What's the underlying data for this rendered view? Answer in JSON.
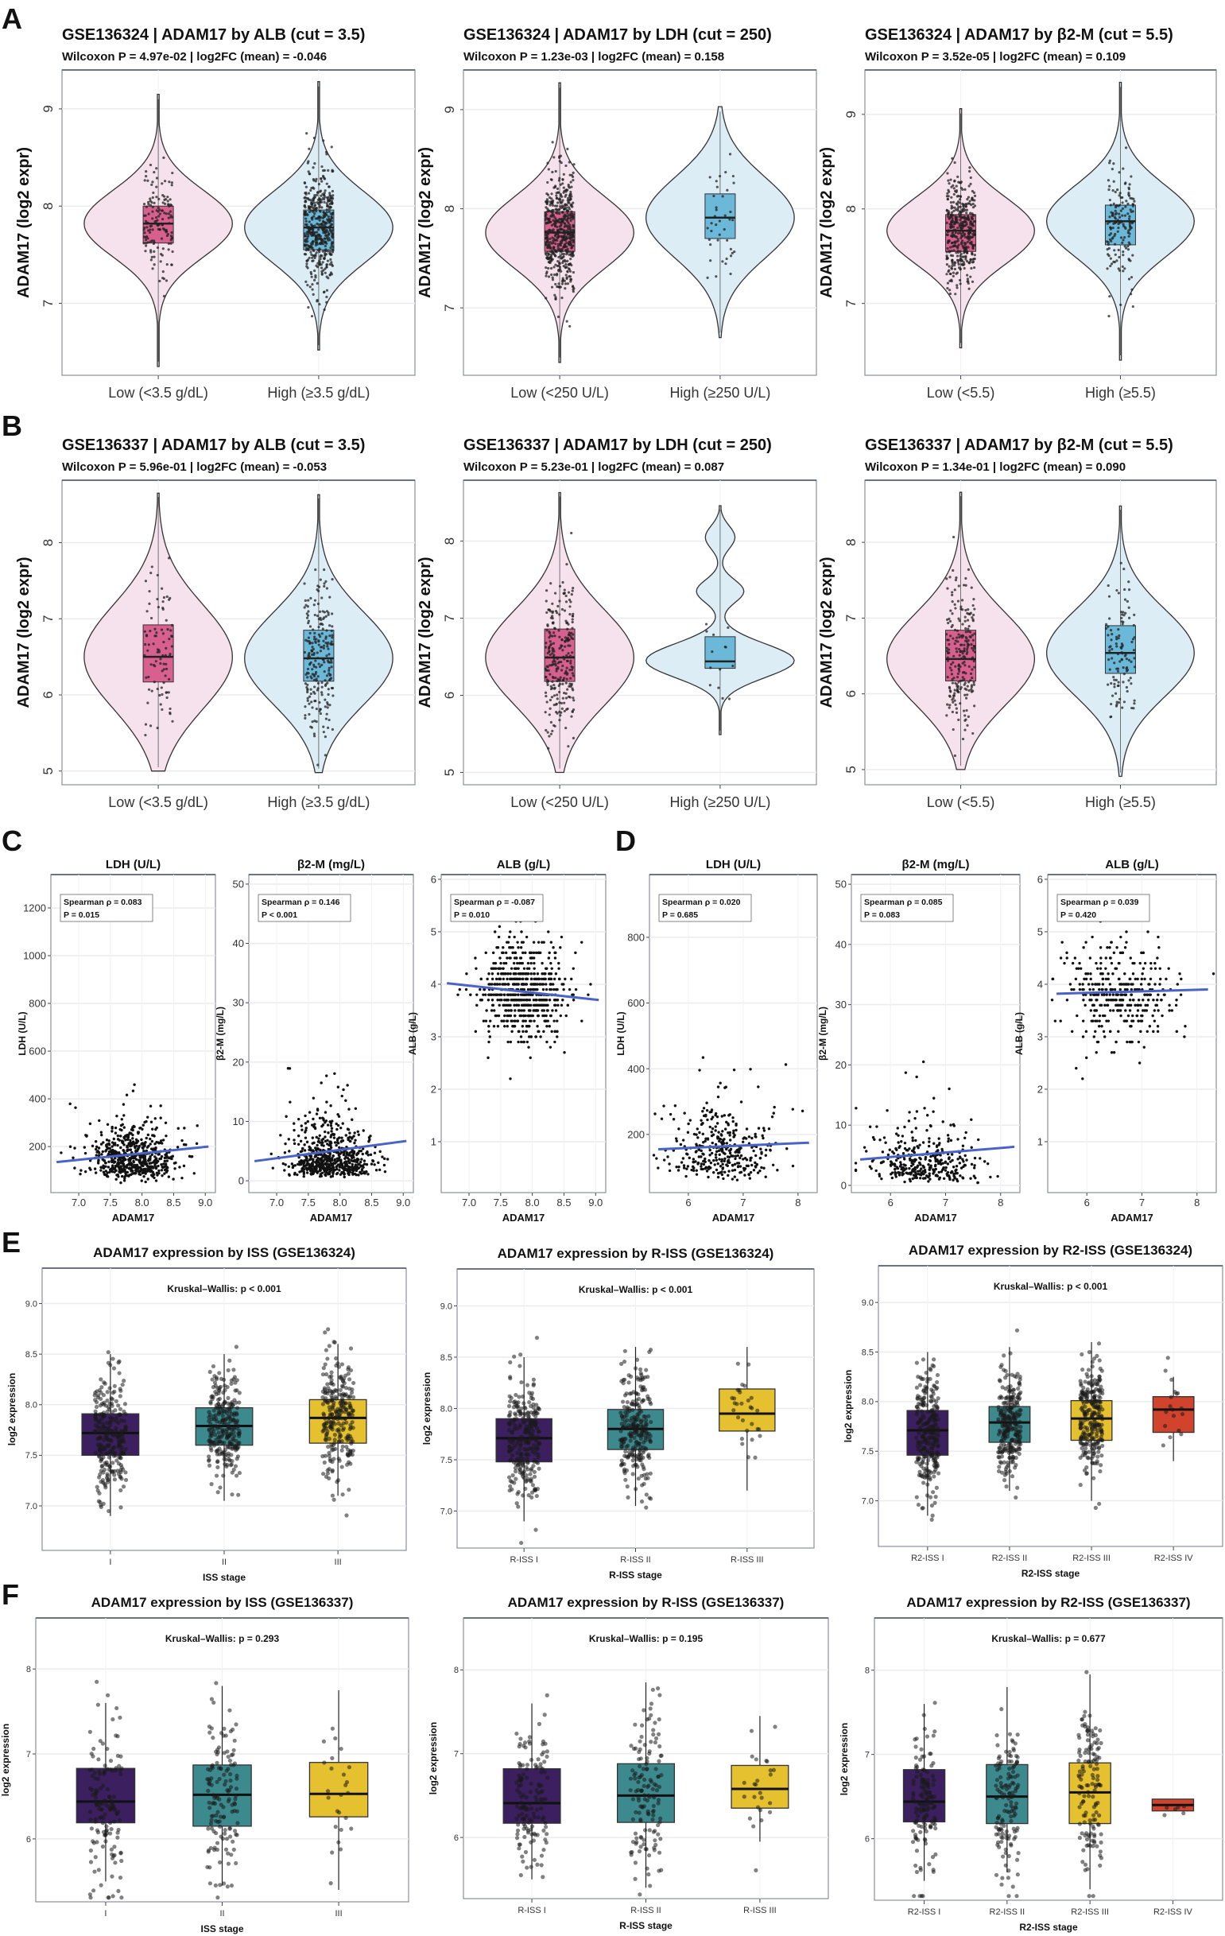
{
  "figure": {
    "panel_labels": [
      "A",
      "B",
      "C",
      "D",
      "E",
      "F"
    ]
  },
  "chart_data": [
    {
      "type": "violin",
      "title": "GSE136324 | ADAM17 by ALB (cut = 3.5)",
      "subtitle": "Wilcoxon P = 4.97e-02 | log2FC (mean) = -0.046",
      "ylabel": "ADAM17 (log2 expr)",
      "ylim": [
        6.26,
        9.4
      ],
      "yticks": [
        "7",
        "8",
        "9"
      ],
      "categories": [
        "Low (<3.5 g/dL)",
        "High (≥3.5 g/dL)"
      ],
      "groups": [
        {
          "median": 7.82,
          "q1": 7.62,
          "q3": 8.0,
          "min": 6.35,
          "max": 9.15,
          "violin": "#f6e2ec",
          "box": "#d8608f"
        },
        {
          "median": 7.78,
          "q1": 7.55,
          "q3": 7.96,
          "min": 6.52,
          "max": 9.28,
          "violin": "#ddedf6",
          "box": "#6cb8d8"
        }
      ]
    },
    {
      "type": "violin",
      "title": "GSE136324 | ADAM17 by LDH (cut = 250)",
      "subtitle": "Wilcoxon P = 1.23e-03 | log2FC (mean) = 0.158",
      "ylabel": "ADAM17 (log2 expr)",
      "ylim": [
        6.32,
        9.4
      ],
      "yticks": [
        "7",
        "8",
        "9"
      ],
      "categories": [
        "Low (<250 U/L)",
        "High (≥250 U/L)"
      ],
      "groups": [
        {
          "median": 7.76,
          "q1": 7.57,
          "q3": 7.97,
          "min": 6.45,
          "max": 9.27,
          "violin": "#f6e2ec",
          "box": "#d8608f"
        },
        {
          "median": 7.91,
          "q1": 7.7,
          "q3": 8.15,
          "min": 6.7,
          "max": 9.03,
          "violin": "#ddedf6",
          "box": "#6cb8d8"
        }
      ]
    },
    {
      "type": "violin",
      "title": "GSE136324 | ADAM17 by β2-M (cut = 5.5)",
      "subtitle": "Wilcoxon P = 3.52e-05 | log2FC (mean) = 0.109",
      "ylabel": "ADAM17 (log2 expr)",
      "ylim": [
        6.24,
        9.47
      ],
      "yticks": [
        "7",
        "8",
        "9"
      ],
      "categories": [
        "Low (<5.5)",
        "High (≥5.5)"
      ],
      "groups": [
        {
          "median": 7.77,
          "q1": 7.55,
          "q3": 7.94,
          "min": 6.53,
          "max": 9.06,
          "violin": "#f6e2ec",
          "box": "#d8608f"
        },
        {
          "median": 7.87,
          "q1": 7.62,
          "q3": 8.04,
          "min": 6.4,
          "max": 9.34,
          "violin": "#ddedf6",
          "box": "#6cb8d8"
        }
      ]
    },
    {
      "type": "violin",
      "title": "GSE136337 | ADAM17 by ALB (cut = 3.5)",
      "subtitle": "Wilcoxon P = 5.96e-01 | log2FC (mean) = -0.053",
      "ylabel": "ADAM17 (log2 expr)",
      "ylim": [
        4.82,
        8.82
      ],
      "yticks": [
        "5",
        "6",
        "7",
        "8"
      ],
      "categories": [
        "Low (<3.5 g/dL)",
        "High (≥3.5 g/dL)"
      ],
      "groups": [
        {
          "median": 6.5,
          "q1": 6.17,
          "q3": 6.92,
          "min": 5.0,
          "max": 8.65,
          "violin": "#f6e2ec",
          "box": "#d8608f"
        },
        {
          "median": 6.48,
          "q1": 6.18,
          "q3": 6.85,
          "min": 4.98,
          "max": 8.63,
          "violin": "#ddedf6",
          "box": "#6cb8d8"
        }
      ]
    },
    {
      "type": "violin",
      "title": "GSE136337 | ADAM17 by LDH (cut = 250)",
      "subtitle": "Wilcoxon P = 5.23e-01 | log2FC (mean) = 0.087",
      "ylabel": "ADAM17 (log2 expr)",
      "ylim": [
        4.84,
        8.79
      ],
      "yticks": [
        "5",
        "6",
        "7",
        "8"
      ],
      "categories": [
        "Low (<250 U/L)",
        "High (≥250 U/L)"
      ],
      "groups": [
        {
          "median": 6.49,
          "q1": 6.18,
          "q3": 6.86,
          "min": 5.0,
          "max": 8.63,
          "violin": "#f6e2ec",
          "box": "#d8608f"
        },
        {
          "median": 6.44,
          "q1": 6.35,
          "q3": 6.76,
          "min": 5.49,
          "max": 8.46,
          "violin": "#ddedf6",
          "box": "#6cb8d8"
        }
      ]
    },
    {
      "type": "violin",
      "title": "GSE136337 | ADAM17 by β2-M (cut = 5.5)",
      "subtitle": "Wilcoxon P = 1.34e-01 | log2FC (mean) = 0.090",
      "ylabel": "ADAM17 (log2 expr)",
      "ylim": [
        4.8,
        8.82
      ],
      "yticks": [
        "5",
        "6",
        "7",
        "8"
      ],
      "categories": [
        "Low (<5.5)",
        "High (≥5.5)"
      ],
      "groups": [
        {
          "median": 6.46,
          "q1": 6.17,
          "q3": 6.84,
          "min": 5.0,
          "max": 8.66,
          "violin": "#f6e2ec",
          "box": "#d8608f"
        },
        {
          "median": 6.54,
          "q1": 6.27,
          "q3": 6.9,
          "min": 4.91,
          "max": 8.48,
          "violin": "#ddedf6",
          "box": "#6cb8d8"
        }
      ]
    },
    {
      "type": "scatter",
      "title": "LDH (U/L)",
      "xlabel": "ADAM17",
      "ylabel": "LDH (U/L)",
      "xlim": [
        6.56,
        9.16
      ],
      "ylim": [
        7,
        1340
      ],
      "xticks": [
        "7.0",
        "7.5",
        "8.0",
        "8.5",
        "9.0"
      ],
      "yticks": [
        "200",
        "400",
        "600",
        "800",
        "1000",
        "1200"
      ],
      "annotation": [
        "Spearman ρ = 0.083",
        "P = 0.015"
      ],
      "trend_line": {
        "x": [
          6.65,
          9.05
        ],
        "y": [
          135,
          200
        ]
      },
      "line_color": "#4a63c8"
    },
    {
      "type": "scatter",
      "title": "β2-M (mg/L)",
      "xlabel": "ADAM17",
      "ylabel": "β2-M (mg/L)",
      "xlim": [
        6.56,
        9.16
      ],
      "ylim": [
        -2,
        51.6
      ],
      "xticks": [
        "7.0",
        "7.5",
        "8.0",
        "8.5",
        "9.0"
      ],
      "yticks": [
        "0",
        "10",
        "20",
        "30",
        "40",
        "50"
      ],
      "annotation": [
        "Spearman ρ = 0.146",
        "P < 0.001"
      ],
      "trend_line": {
        "x": [
          6.65,
          9.05
        ],
        "y": [
          3.3,
          6.7
        ]
      },
      "line_color": "#4a63c8"
    },
    {
      "type": "scatter",
      "title": "ALB (g/L)",
      "xlabel": "ADAM17",
      "ylabel": "ALB (g/L)",
      "xlim": [
        6.56,
        9.16
      ],
      "ylim": [
        0.03,
        6.09
      ],
      "xticks": [
        "7.0",
        "7.5",
        "8.0",
        "8.5",
        "9.0"
      ],
      "yticks": [
        "1",
        "2",
        "3",
        "4",
        "5",
        "6"
      ],
      "annotation": [
        "Spearman ρ = -0.087",
        "P = 0.010"
      ],
      "trend_line": {
        "x": [
          6.65,
          9.05
        ],
        "y": [
          4.02,
          3.7
        ]
      },
      "line_color": "#4a63c8"
    },
    {
      "type": "scatter",
      "title": "LDH (U/L)",
      "xlabel": "ADAM17",
      "ylabel": "LDH (U/L)",
      "xlim": [
        5.29,
        8.35
      ],
      "ylim": [
        23,
        991
      ],
      "xticks": [
        "6",
        "7",
        "8"
      ],
      "yticks": [
        "200",
        "400",
        "600",
        "800"
      ],
      "annotation": [
        "Spearman ρ = 0.020",
        "P = 0.685"
      ],
      "trend_line": {
        "x": [
          5.45,
          8.2
        ],
        "y": [
          155,
          175
        ]
      },
      "line_color": "#4a63c8"
    },
    {
      "type": "scatter",
      "title": "β2-M (mg/L)",
      "xlabel": "ADAM17",
      "ylabel": "β2-M (mg/L)",
      "xlim": [
        5.29,
        8.35
      ],
      "ylim": [
        -1.2,
        51.6
      ],
      "xticks": [
        "6",
        "7",
        "8"
      ],
      "yticks": [
        "0",
        "10",
        "20",
        "30",
        "40",
        "50"
      ],
      "annotation": [
        "Spearman ρ = 0.085",
        "P = 0.083"
      ],
      "trend_line": {
        "x": [
          5.45,
          8.25
        ],
        "y": [
          4.3,
          6.4
        ]
      },
      "line_color": "#4a63c8"
    },
    {
      "type": "scatter",
      "title": "ALB (g/L)",
      "xlabel": "ADAM17",
      "ylabel": "ALB (g/L)",
      "xlim": [
        5.29,
        8.35
      ],
      "ylim": [
        0.03,
        6.09
      ],
      "xticks": [
        "6",
        "7",
        "8"
      ],
      "yticks": [
        "1",
        "2",
        "3",
        "4",
        "5",
        "6"
      ],
      "annotation": [
        "Spearman ρ = 0.039",
        "P = 0.420"
      ],
      "trend_line": {
        "x": [
          5.45,
          8.2
        ],
        "y": [
          3.82,
          3.9
        ]
      },
      "line_color": "#4a63c8"
    },
    {
      "type": "box",
      "title": "ADAM17 expression by ISS (GSE136324)",
      "annotation": "Kruskal–Wallis: p < 0.001",
      "xlabel": "ISS stage",
      "ylabel": "log2 expression",
      "ylim": [
        6.56,
        9.35
      ],
      "yticks": [
        "7.0",
        "7.5",
        "8.0",
        "8.5",
        "9.0"
      ],
      "categories": [
        "I",
        "II",
        "III"
      ],
      "groups": [
        {
          "median": 7.72,
          "q1": 7.5,
          "q3": 7.91,
          "lo": 6.9,
          "hi": 8.5,
          "color": "#3b1f5e"
        },
        {
          "median": 7.79,
          "q1": 7.6,
          "q3": 7.97,
          "lo": 7.05,
          "hi": 8.5,
          "color": "#3d8a8e"
        },
        {
          "median": 7.87,
          "q1": 7.62,
          "q3": 8.05,
          "lo": 7.1,
          "hi": 8.6,
          "color": "#e6c12f"
        }
      ]
    },
    {
      "type": "box",
      "title": "ADAM17 expression by R-ISS (GSE136324)",
      "annotation": "Kruskal–Wallis: p < 0.001",
      "xlabel": "R-ISS stage",
      "ylabel": "log2 expression",
      "ylim": [
        6.64,
        9.36
      ],
      "yticks": [
        "7.0",
        "7.5",
        "8.0",
        "8.5",
        "9.0"
      ],
      "categories": [
        "R-ISS I",
        "R-ISS II",
        "R-ISS III"
      ],
      "groups": [
        {
          "median": 7.71,
          "q1": 7.48,
          "q3": 7.9,
          "lo": 6.9,
          "hi": 8.5,
          "color": "#3b1f5e"
        },
        {
          "median": 7.8,
          "q1": 7.6,
          "q3": 7.99,
          "lo": 7.05,
          "hi": 8.6,
          "color": "#3d8a8e"
        },
        {
          "median": 7.95,
          "q1": 7.78,
          "q3": 8.19,
          "lo": 7.2,
          "hi": 8.6,
          "color": "#e6c12f"
        }
      ]
    },
    {
      "type": "box",
      "title": "ADAM17 expression by R2-ISS (GSE136324)",
      "annotation": "Kruskal–Wallis: p < 0.001",
      "xlabel": "R2-ISS stage",
      "ylabel": "log2 expression",
      "ylim": [
        6.54,
        9.37
      ],
      "yticks": [
        "7.0",
        "7.5",
        "8.0",
        "8.5",
        "9.0"
      ],
      "categories": [
        "R2-ISS I",
        "R2-ISS II",
        "R2-ISS III",
        "R2-ISS IV"
      ],
      "groups": [
        {
          "median": 7.71,
          "q1": 7.46,
          "q3": 7.91,
          "lo": 6.85,
          "hi": 8.5,
          "color": "#3b1f5e"
        },
        {
          "median": 7.79,
          "q1": 7.59,
          "q3": 7.95,
          "lo": 7.1,
          "hi": 8.55,
          "color": "#3d8a8e"
        },
        {
          "median": 7.83,
          "q1": 7.61,
          "q3": 8.01,
          "lo": 7.0,
          "hi": 8.6,
          "color": "#e6c12f"
        },
        {
          "median": 7.92,
          "q1": 7.69,
          "q3": 8.05,
          "lo": 7.4,
          "hi": 8.25,
          "color": "#d2432e"
        }
      ]
    },
    {
      "type": "box",
      "title": "ADAM17 expression by ISS (GSE136337)",
      "annotation": "Kruskal–Wallis: p = 0.293",
      "xlabel": "ISS stage",
      "ylabel": "log2 expression",
      "ylim": [
        5.26,
        8.6
      ],
      "yticks": [
        "6",
        "7",
        "8"
      ],
      "categories": [
        "I",
        "II",
        "III"
      ],
      "groups": [
        {
          "median": 6.44,
          "q1": 6.19,
          "q3": 6.83,
          "lo": 5.5,
          "hi": 7.6,
          "color": "#3b1f5e"
        },
        {
          "median": 6.52,
          "q1": 6.15,
          "q3": 6.87,
          "lo": 5.45,
          "hi": 7.8,
          "color": "#3d8a8e"
        },
        {
          "median": 6.53,
          "q1": 6.26,
          "q3": 6.9,
          "lo": 5.4,
          "hi": 7.75,
          "color": "#e6c12f"
        }
      ]
    },
    {
      "type": "box",
      "title": "ADAM17 expression by R-ISS (GSE136337)",
      "annotation": "Kruskal–Wallis: p = 0.195",
      "xlabel": "R-ISS stage",
      "ylabel": "log2 expression",
      "ylim": [
        5.27,
        8.62
      ],
      "yticks": [
        "6",
        "7",
        "8"
      ],
      "categories": [
        "R-ISS I",
        "R-ISS II",
        "R-ISS III"
      ],
      "groups": [
        {
          "median": 6.41,
          "q1": 6.17,
          "q3": 6.82,
          "lo": 5.5,
          "hi": 7.6,
          "color": "#3b1f5e"
        },
        {
          "median": 6.5,
          "q1": 6.18,
          "q3": 6.88,
          "lo": 5.4,
          "hi": 7.85,
          "color": "#3d8a8e"
        },
        {
          "median": 6.58,
          "q1": 6.35,
          "q3": 6.86,
          "lo": 5.95,
          "hi": 7.45,
          "color": "#e6c12f"
        }
      ]
    },
    {
      "type": "box",
      "title": "ADAM17 expression by R2-ISS (GSE136337)",
      "annotation": "Kruskal–Wallis: p = 0.677",
      "xlabel": "R2-ISS stage",
      "ylabel": "log2 expression",
      "ylim": [
        5.27,
        8.62
      ],
      "yticks": [
        "6",
        "7",
        "8"
      ],
      "categories": [
        "R2-ISS I",
        "R2-ISS II",
        "R2-ISS III",
        "R2-ISS IV"
      ],
      "groups": [
        {
          "median": 6.44,
          "q1": 6.2,
          "q3": 6.82,
          "lo": 5.5,
          "hi": 7.6,
          "color": "#3b1f5e"
        },
        {
          "median": 6.5,
          "q1": 6.18,
          "q3": 6.88,
          "lo": 5.6,
          "hi": 7.8,
          "color": "#3d8a8e"
        },
        {
          "median": 6.55,
          "q1": 6.18,
          "q3": 6.9,
          "lo": 5.4,
          "hi": 7.95,
          "color": "#e6c12f"
        },
        {
          "median": 6.4,
          "q1": 6.33,
          "q3": 6.47,
          "lo": 6.33,
          "hi": 6.47,
          "color": "#d2432e"
        }
      ]
    }
  ]
}
